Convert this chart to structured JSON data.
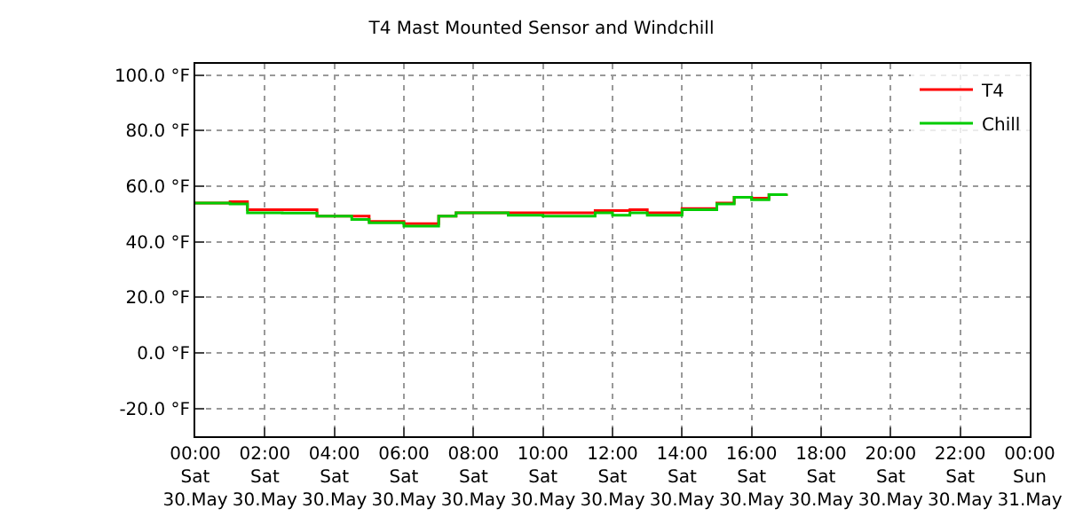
{
  "chart_data": {
    "type": "step",
    "title": "T4 Mast Mounted Sensor and Windchill",
    "x": [
      "--05-30T00:00",
      "--05-30T01:00",
      "--05-30T01:30",
      "--05-30T02:30",
      "--05-30T03:30",
      "--05-30T04:30",
      "--05-30T05:00",
      "--05-30T06:00",
      "--05-30T07:00",
      "--05-30T07:30",
      "--05-30T09:00",
      "--05-30T10:00",
      "--05-30T11:30",
      "--05-30T12:00",
      "--05-30T12:30",
      "--05-30T13:00",
      "--05-30T14:00",
      "--05-30T15:00",
      "--05-30T15:30",
      "--05-30T16:00",
      "--05-30T16:30",
      "--05-30T17:00"
    ],
    "series": [
      {
        "name": "T4",
        "color": "#ff0000",
        "values": [
          53.9,
          54.4,
          51.5,
          51.5,
          49.2,
          49.2,
          47.3,
          46.5,
          49.2,
          50.4,
          50.4,
          50.4,
          51.2,
          51.2,
          51.5,
          50.4,
          51.9,
          53.9,
          56.0,
          55.7,
          56.9,
          57.3
        ]
      },
      {
        "name": "Chill",
        "color": "#00cc00",
        "values": [
          53.9,
          53.6,
          50.4,
          50.3,
          49.2,
          48.0,
          46.8,
          45.6,
          49.2,
          50.4,
          49.5,
          49.2,
          50.4,
          49.5,
          50.4,
          49.5,
          51.5,
          53.6,
          56.0,
          55.1,
          56.9,
          57.3
        ]
      }
    ],
    "xlim": [
      "--05-30T00:00",
      "--05-31T00:00"
    ],
    "xticks": [
      {
        "value": "--05-30T00:00",
        "label": "00:00\nSat\n30.May"
      },
      {
        "value": "--05-30T02:00",
        "label": "02:00\nSat\n30.May"
      },
      {
        "value": "--05-30T04:00",
        "label": "04:00\nSat\n30.May"
      },
      {
        "value": "--05-30T06:00",
        "label": "06:00\nSat\n30.May"
      },
      {
        "value": "--05-30T08:00",
        "label": "08:00\nSat\n30.May"
      },
      {
        "value": "--05-30T10:00",
        "label": "10:00\nSat\n30.May"
      },
      {
        "value": "--05-30T12:00",
        "label": "12:00\nSat\n30.May"
      },
      {
        "value": "--05-30T14:00",
        "label": "14:00\nSat\n30.May"
      },
      {
        "value": "--05-30T16:00",
        "label": "16:00\nSat\n30.May"
      },
      {
        "value": "--05-30T18:00",
        "label": "18:00\nSat\n30.May"
      },
      {
        "value": "--05-30T20:00",
        "label": "20:00\nSat\n30.May"
      },
      {
        "value": "--05-30T22:00",
        "label": "22:00\nSat\n30.May"
      },
      {
        "value": "--05-31T00:00",
        "label": "00:00\nSun\n31.May"
      }
    ],
    "ylim": [
      -30,
      104
    ],
    "yticks": [
      {
        "value": -20,
        "label": "-20.0 °F"
      },
      {
        "value": 0,
        "label": "0.0 °F"
      },
      {
        "value": 20,
        "label": "20.0 °F"
      },
      {
        "value": 40,
        "label": "40.0 °F"
      },
      {
        "value": 60,
        "label": "60.0 °F"
      },
      {
        "value": 80,
        "label": "80.0 °F"
      },
      {
        "value": 100,
        "label": "100.0 °F"
      }
    ],
    "grid": true,
    "legend": "top right",
    "line_style": "solid",
    "marker": "none"
  }
}
